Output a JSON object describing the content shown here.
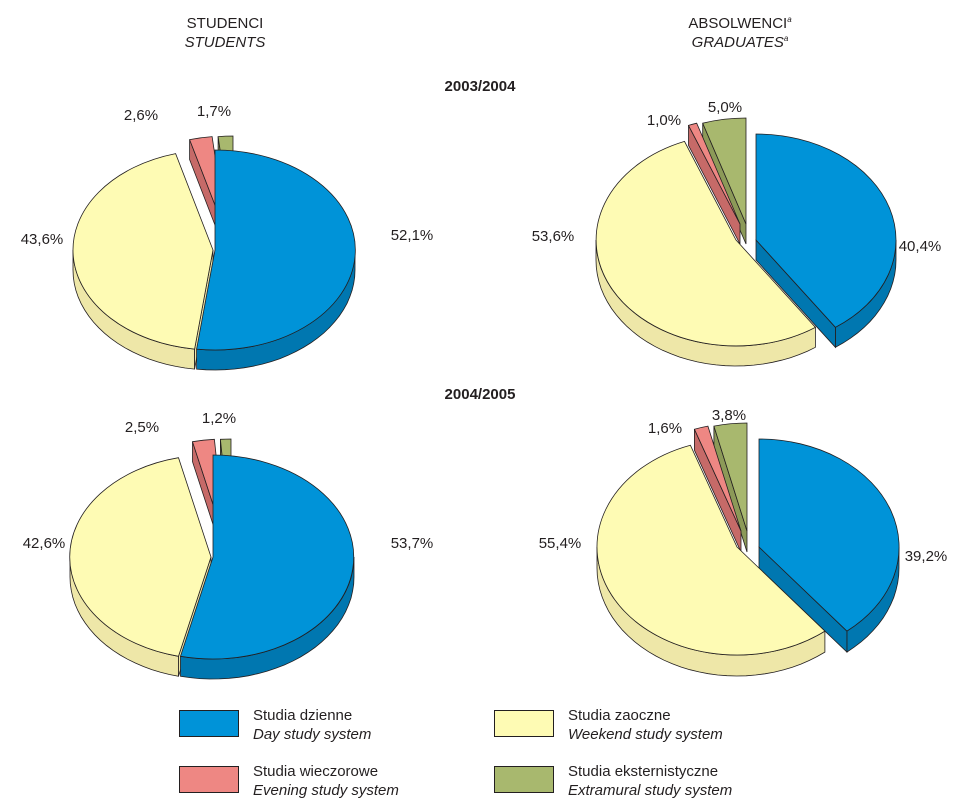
{
  "headers": {
    "students_pl": "STUDENCI",
    "students_en": "STUDENTS",
    "graduates_pl": "ABSOLWENCI",
    "graduates_en": "GRADUATES",
    "graduates_note": "a"
  },
  "legend": [
    {
      "pl": "Studia dzienne",
      "en": "Day study system",
      "color": "#0093d8"
    },
    {
      "pl": "Studia zaoczne",
      "en": "Weekend study system",
      "color": "#fefbb4"
    },
    {
      "pl": "Studia wieczorowe",
      "en": "Evening study system",
      "color": "#ee8783"
    },
    {
      "pl": "Studia eksternistyczne",
      "en": "Extramural study system",
      "color": "#a8b86e"
    }
  ],
  "chart_data": [
    {
      "type": "pie",
      "group": "students",
      "year": "2003/2004",
      "categories": [
        "Studia dzienne",
        "Studia zaoczne",
        "Studia wieczorowe",
        "Studia eksternistyczne"
      ],
      "values": [
        52.1,
        43.6,
        2.6,
        1.7
      ],
      "labels": [
        "52,1%",
        "43,6%",
        "2,6%",
        "1,7%"
      ]
    },
    {
      "type": "pie",
      "group": "graduates",
      "year": "2003/2004",
      "categories": [
        "Studia dzienne",
        "Studia zaoczne",
        "Studia wieczorowe",
        "Studia eksternistyczne"
      ],
      "values": [
        40.4,
        53.6,
        1.0,
        5.0
      ],
      "labels": [
        "40,4%",
        "53,6%",
        "1,0%",
        "5,0%"
      ]
    },
    {
      "type": "pie",
      "group": "students",
      "year": "2004/2005",
      "categories": [
        "Studia dzienne",
        "Studia zaoczne",
        "Studia wieczorowe",
        "Studia eksternistyczne"
      ],
      "values": [
        53.7,
        42.6,
        2.5,
        1.2
      ],
      "labels": [
        "53,7%",
        "42,6%",
        "2,5%",
        "1,2%"
      ]
    },
    {
      "type": "pie",
      "group": "graduates",
      "year": "2004/2005",
      "categories": [
        "Studia dzienne",
        "Studia zaoczne",
        "Studia wieczorowe",
        "Studia eksternistyczne"
      ],
      "values": [
        39.2,
        55.4,
        1.6,
        3.8
      ],
      "labels": [
        "39,2%",
        "55,4%",
        "1,6%",
        "3,8%"
      ]
    }
  ]
}
